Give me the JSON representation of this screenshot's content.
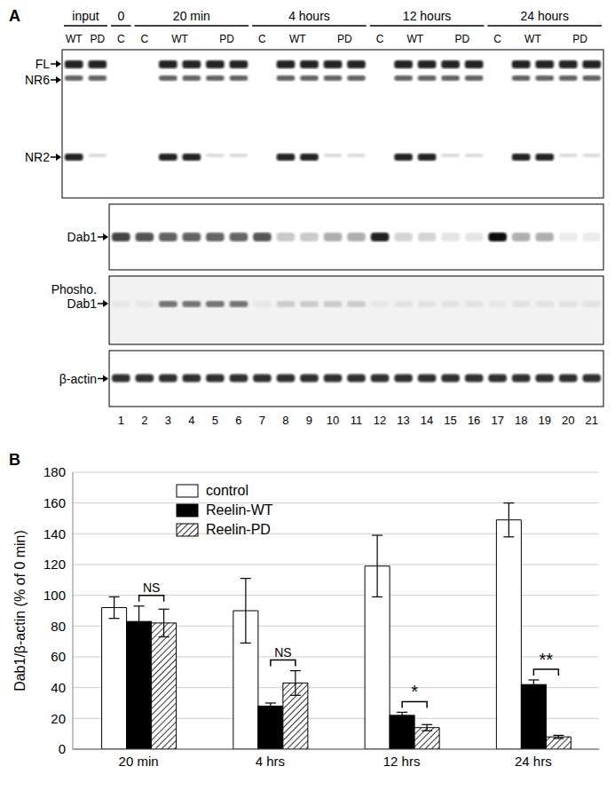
{
  "panel_a": {
    "label": "A",
    "groups": [
      {
        "text": "input",
        "lanes": [
          {
            "text": "WT",
            "count": 1
          },
          {
            "text": "PD",
            "count": 1
          }
        ]
      },
      {
        "text": "0",
        "lanes": [
          {
            "text": "C",
            "count": 1
          }
        ]
      },
      {
        "text": "20 min",
        "lanes": [
          {
            "text": "C",
            "count": 1
          },
          {
            "text": "WT",
            "count": 2
          },
          {
            "text": "PD",
            "count": 2
          }
        ]
      },
      {
        "text": "4 hours",
        "lanes": [
          {
            "text": "C",
            "count": 1
          },
          {
            "text": "WT",
            "count": 2
          },
          {
            "text": "PD",
            "count": 2
          }
        ]
      },
      {
        "text": "12 hours",
        "lanes": [
          {
            "text": "C",
            "count": 1
          },
          {
            "text": "WT",
            "count": 2
          },
          {
            "text": "PD",
            "count": 2
          }
        ]
      },
      {
        "text": "24 hours",
        "lanes": [
          {
            "text": "C",
            "count": 1
          },
          {
            "text": "WT",
            "count": 2
          },
          {
            "text": "PD",
            "count": 2
          }
        ]
      }
    ],
    "blots": [
      {
        "bands": [
          "FL",
          "NR6",
          "NR2"
        ]
      },
      {
        "bands": [
          "Dab1"
        ]
      },
      {
        "bands": [
          "Phosho.",
          "Dab1"
        ]
      },
      {
        "bands": [
          "β-actin"
        ]
      }
    ],
    "lane_numbers": [
      1,
      2,
      3,
      4,
      5,
      6,
      7,
      8,
      9,
      10,
      11,
      12,
      13,
      14,
      15,
      16,
      17,
      18,
      19,
      20,
      21
    ]
  },
  "panel_b": {
    "label": "B"
  },
  "chart_data": {
    "type": "bar",
    "ylabel": "Dab1/β-actin (% of 0 min)",
    "categories": [
      "20 min",
      "4 hrs",
      "12 hrs",
      "24 hrs"
    ],
    "series": [
      {
        "name": "control",
        "color": "#ffffff",
        "values": [
          92,
          90,
          119,
          149
        ],
        "errors": [
          7,
          21,
          20,
          11
        ]
      },
      {
        "name": "Reelin-WT",
        "color": "#000000",
        "values": [
          83,
          28,
          22,
          42
        ],
        "errors": [
          10,
          2,
          2,
          3
        ]
      },
      {
        "name": "Reelin-PD",
        "color": "#000000",
        "values": [
          82,
          43,
          14,
          8
        ],
        "errors": [
          9,
          8,
          2,
          1
        ]
      }
    ],
    "ylim": [
      0,
      180
    ],
    "yticks": [
      0,
      20,
      40,
      60,
      80,
      100,
      120,
      140,
      160,
      180
    ],
    "grid": true,
    "legend": "top",
    "annotations": [
      {
        "category": "20 min",
        "text": "NS"
      },
      {
        "category": "4 hrs",
        "text": "NS"
      },
      {
        "category": "12 hrs",
        "text": "*"
      },
      {
        "category": "24 hrs",
        "text": "**"
      }
    ]
  }
}
